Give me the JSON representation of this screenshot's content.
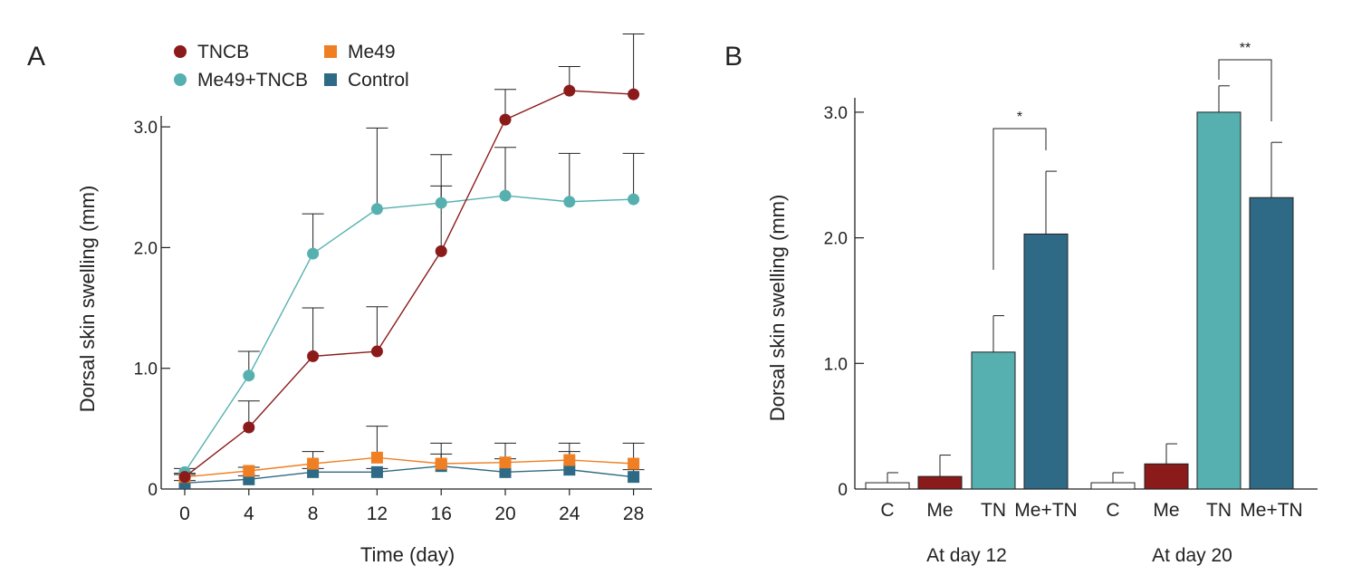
{
  "chart_data": [
    {
      "id": "A",
      "panel_label": "A",
      "type": "line",
      "xlabel": "Time (day)",
      "ylabel": "Dorsal skin swelling (mm)",
      "ylim": [
        0,
        3.0
      ],
      "y_ticks": [
        "0",
        "1.0",
        "2.0",
        "3.0"
      ],
      "x": [
        0,
        4,
        8,
        12,
        16,
        20,
        24,
        28
      ],
      "x_ticks": [
        "0",
        "4",
        "8",
        "12",
        "16",
        "20",
        "24",
        "28"
      ],
      "legend_position": "top-left",
      "series": [
        {
          "name": "TNCB",
          "color": "#8b1a1a",
          "marker": "circle",
          "values": [
            0.1,
            0.51,
            1.1,
            1.14,
            1.97,
            3.06,
            3.3,
            3.27
          ],
          "errors": [
            0.03,
            0.22,
            0.4,
            0.37,
            0.54,
            0.25,
            0.2,
            0.5
          ]
        },
        {
          "name": "Me49+TNCB",
          "color": "#56b0b0",
          "marker": "circle",
          "values": [
            0.14,
            0.94,
            1.95,
            2.32,
            2.37,
            2.43,
            2.38,
            2.4
          ],
          "errors": [
            0.03,
            0.2,
            0.33,
            0.67,
            0.4,
            0.4,
            0.4,
            0.38
          ]
        },
        {
          "name": "Me49",
          "color": "#f07f24",
          "marker": "square",
          "values": [
            0.1,
            0.15,
            0.21,
            0.26,
            0.21,
            0.22,
            0.24,
            0.21
          ],
          "errors": [
            0.02,
            0.03,
            0.1,
            0.26,
            0.17,
            0.16,
            0.14,
            0.17
          ]
        },
        {
          "name": "Control",
          "color": "#2e6a86",
          "marker": "square",
          "values": [
            0.05,
            0.08,
            0.14,
            0.14,
            0.19,
            0.14,
            0.16,
            0.1
          ],
          "errors": [
            0.02,
            0.03,
            0.03,
            0.03,
            0.1,
            0.11,
            0.15,
            0.06
          ]
        }
      ]
    },
    {
      "id": "B",
      "panel_label": "B",
      "type": "bar",
      "ylabel": "Dorsal skin swelling (mm)",
      "ylim": [
        0,
        3.0
      ],
      "y_ticks": [
        "0",
        "1.0",
        "2.0",
        "3.0"
      ],
      "groups": [
        {
          "label": "At day 12",
          "bars": [
            {
              "label": "C",
              "value": 0.05,
              "error": 0.08,
              "color": "#ffffff"
            },
            {
              "label": "Me",
              "value": 0.1,
              "error": 0.17,
              "color": "#8b1a1a"
            },
            {
              "label": "TN",
              "value": 1.09,
              "error": 0.29,
              "color": "#56b0b0"
            },
            {
              "label": "Me+TN",
              "value": 2.03,
              "error": 0.5,
              "color": "#2e6a86"
            }
          ],
          "significance": {
            "label": "*",
            "between": [
              "TN",
              "Me+TN"
            ]
          }
        },
        {
          "label": "At day 20",
          "bars": [
            {
              "label": "C",
              "value": 0.05,
              "error": 0.08,
              "color": "#ffffff"
            },
            {
              "label": "Me",
              "value": 0.2,
              "error": 0.16,
              "color": "#8b1a1a"
            },
            {
              "label": "TN",
              "value": 3.0,
              "error": 0.21,
              "color": "#56b0b0"
            },
            {
              "label": "Me+TN",
              "value": 2.32,
              "error": 0.44,
              "color": "#2e6a86"
            }
          ],
          "significance": {
            "label": "**",
            "between": [
              "TN",
              "Me+TN"
            ]
          }
        }
      ]
    }
  ]
}
